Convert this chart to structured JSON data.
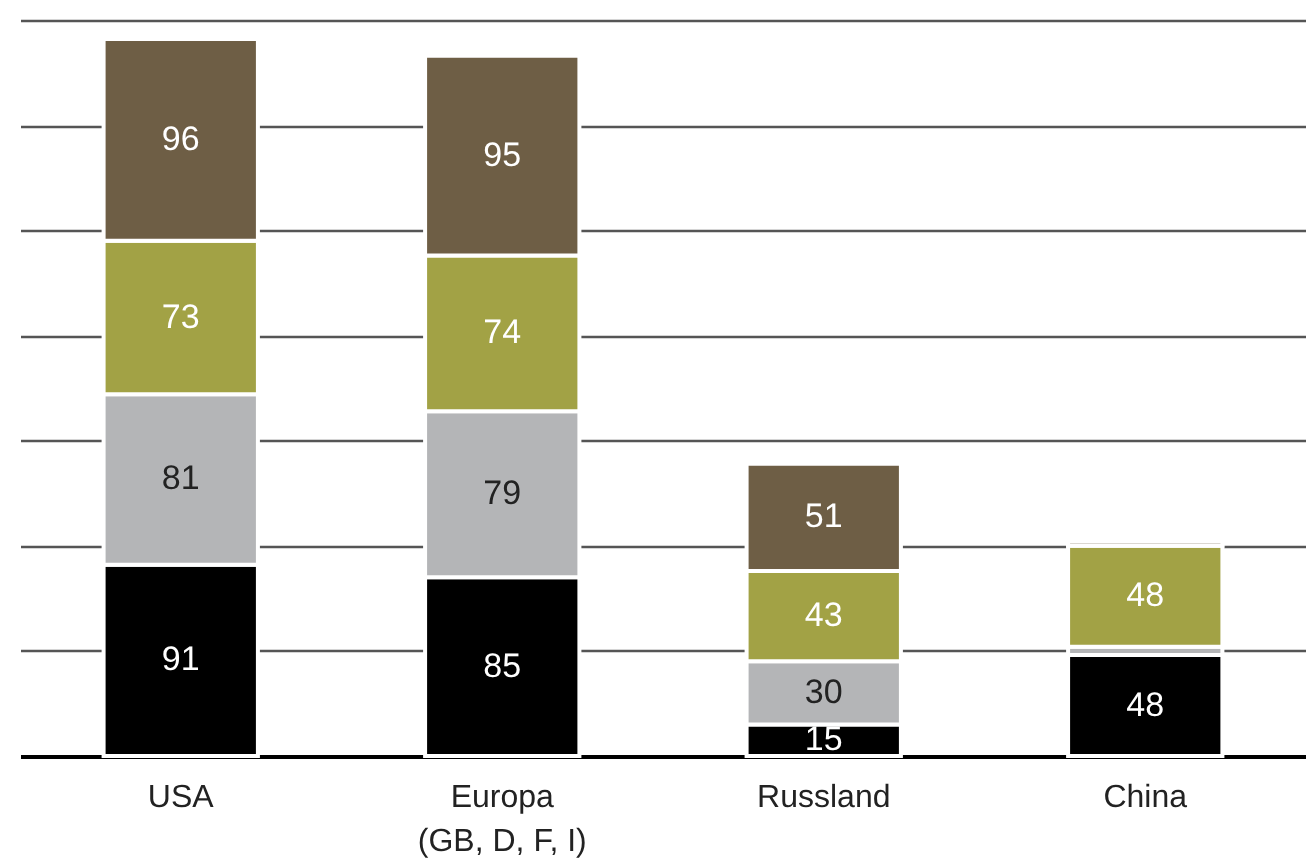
{
  "chart_data": {
    "type": "bar",
    "stacked": true,
    "categories": [
      "USA",
      "Europa\n(GB, D, F, I)",
      "Russland",
      "China"
    ],
    "series": [
      {
        "color": "#000000",
        "values": [
          91,
          85,
          15,
          48
        ],
        "value_labels": [
          "91",
          "85",
          "15",
          "48"
        ]
      },
      {
        "color": "#b4b5b7",
        "values": [
          81,
          79,
          30,
          4
        ],
        "value_labels": [
          "81",
          "79",
          "30",
          null
        ]
      },
      {
        "color": "#a2a245",
        "values": [
          73,
          74,
          43,
          48
        ],
        "value_labels": [
          "73",
          "74",
          "43",
          "48"
        ]
      },
      {
        "color": "#6e5e45",
        "values": [
          96,
          95,
          51,
          2
        ],
        "value_labels": [
          "96",
          "95",
          "51",
          null
        ]
      }
    ],
    "ylim": [
      0,
      350
    ],
    "yticks": [
      {
        "value": 0,
        "label": null
      },
      {
        "value": 50,
        "label": null
      },
      {
        "value": 100,
        "label": null
      },
      {
        "value": 150,
        "label": null
      },
      {
        "value": 200,
        "label": null
      },
      {
        "value": 250,
        "label": null
      },
      {
        "value": 300,
        "label": null
      },
      {
        "value": 350,
        "label": null
      }
    ],
    "grid": "y",
    "tick_labels": "x"
  }
}
